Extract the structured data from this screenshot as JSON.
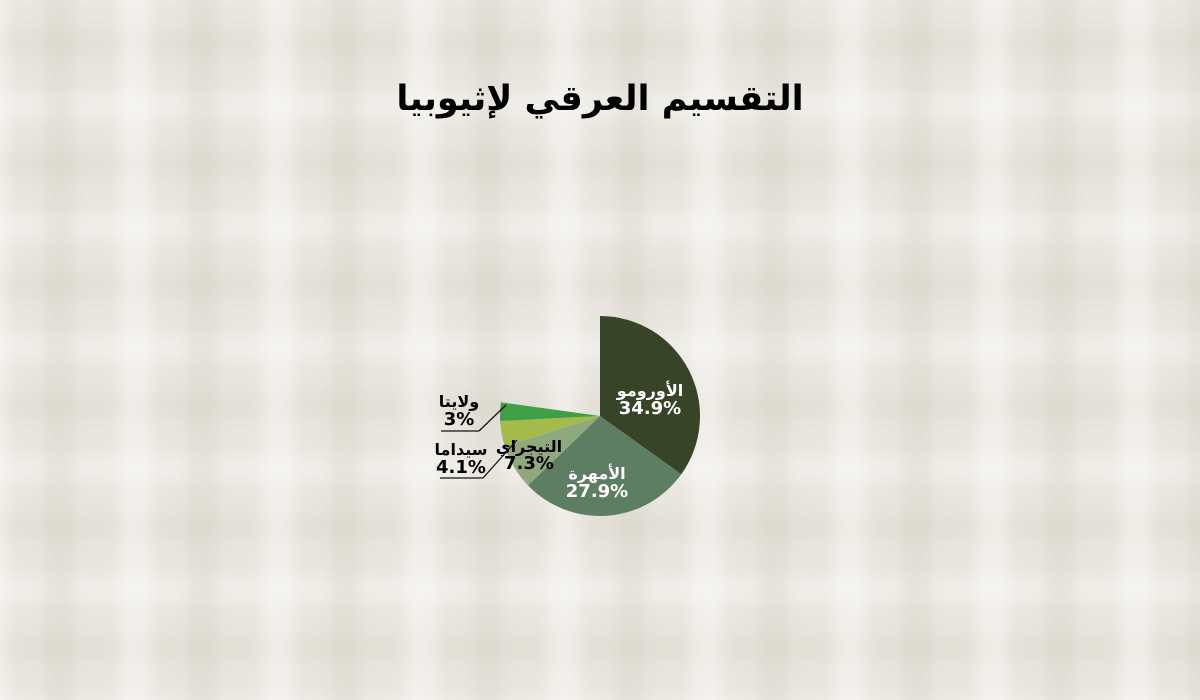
{
  "palette": {
    "background": "#e9e6df",
    "title_color": "#000000"
  },
  "chart_data": {
    "type": "pie",
    "title": "التقسيم العرقي لإثيوبيا",
    "unit": "%",
    "start_angle_deg": 0,
    "direction": "clockwise",
    "full_circle_value": 100,
    "legend": "none",
    "slices": [
      {
        "label": "الأورومو",
        "value": 34.9,
        "pct_label": "34.9%",
        "color": "#384428",
        "text_color": "#ffffff",
        "label_placement": "inside"
      },
      {
        "label": "الأمهرة",
        "value": 27.9,
        "pct_label": "27.9%",
        "color": "#5e7e64",
        "text_color": "#ffffff",
        "label_placement": "inside"
      },
      {
        "label": "التيجراي",
        "value": 7.3,
        "pct_label": "7.3%",
        "color": "#90a87e",
        "text_color": "#000000",
        "label_placement": "inside"
      },
      {
        "label": "سيداما",
        "value": 4.1,
        "pct_label": "4.1%",
        "color": "#a4ba4a",
        "text_color": "#000000",
        "label_placement": "outside"
      },
      {
        "label": "ولايتا",
        "value": 3,
        "pct_label": "3%",
        "color": "#3f9f47",
        "text_color": "#000000",
        "label_placement": "outside"
      }
    ]
  }
}
